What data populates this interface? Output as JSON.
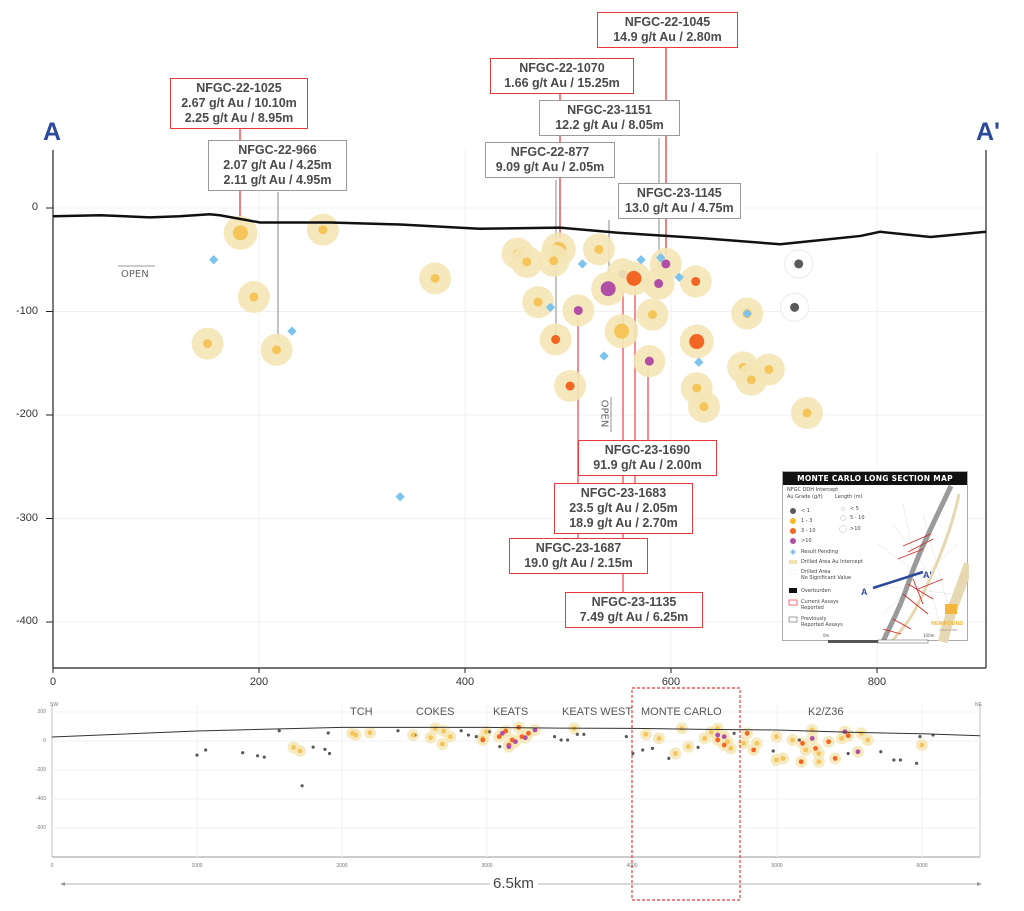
{
  "section_labels": {
    "start": "A",
    "end": "A'"
  },
  "colors": {
    "grade_lt1": "#5a5a5a",
    "grade_1_3": "#f5c55a",
    "grade_3_10": "#f26522",
    "grade_gt10": "#b04fa5",
    "halo": "#f5e6b6",
    "pending": "#7cc3ee",
    "callout_current": "#e8393f",
    "callout_previous": "#9a9a9a",
    "section_line": "#2c4a9c"
  },
  "main": {
    "x_ticks": [
      "0",
      "200",
      "400",
      "600",
      "800"
    ],
    "y_ticks": [
      "0",
      "-100",
      "-200",
      "-300",
      "-400"
    ],
    "x_tick_values": [
      0,
      200,
      400,
      600,
      800
    ],
    "y_tick_values": [
      0,
      -100,
      -200,
      -300,
      -400
    ],
    "open_labels": [
      "OPEN",
      "OPEN"
    ],
    "surface": [
      [
        0,
        -8
      ],
      [
        46,
        -7
      ],
      [
        94,
        -9
      ],
      [
        123,
        -8
      ],
      [
        152,
        -6
      ],
      [
        162,
        -7
      ],
      [
        201,
        -14
      ],
      [
        269,
        -14
      ],
      [
        337,
        -16
      ],
      [
        414,
        -20
      ],
      [
        492,
        -19
      ],
      [
        550,
        -24
      ],
      [
        628,
        -29
      ],
      [
        706,
        -35
      ],
      [
        745,
        -31
      ],
      [
        784,
        -27
      ],
      [
        803,
        -23
      ],
      [
        852,
        -28
      ],
      [
        906,
        -23
      ]
    ],
    "intercepts": [
      {
        "x": 182,
        "y": -24,
        "grade": "1-3",
        "length": ">10"
      },
      {
        "x": 262,
        "y": -21,
        "grade": "1-3",
        "length": "5-10"
      },
      {
        "x": 195,
        "y": -86,
        "grade": "1-3",
        "length": "5-10"
      },
      {
        "x": 150,
        "y": -131,
        "grade": "1-3",
        "length": "5-10"
      },
      {
        "x": 217,
        "y": -137,
        "grade": "1-3",
        "length": "5-10"
      },
      {
        "x": 371,
        "y": -68,
        "grade": "1-3",
        "length": "5-10"
      },
      {
        "x": 451,
        "y": -44,
        "grade": "1-3",
        "length": "5-10"
      },
      {
        "x": 460,
        "y": -52,
        "grade": "1-3",
        "length": "5-10"
      },
      {
        "x": 491,
        "y": -40,
        "grade": "1-3",
        "length": ">10"
      },
      {
        "x": 486,
        "y": -51,
        "grade": "1-3",
        "length": "5-10"
      },
      {
        "x": 530,
        "y": -40,
        "grade": "1-3",
        "length": "5-10"
      },
      {
        "x": 595,
        "y": -54,
        "grade": ">10",
        "length": "5-10"
      },
      {
        "x": 553,
        "y": -64,
        "grade": ">10",
        "length": "5-10"
      },
      {
        "x": 564,
        "y": -68,
        "grade": "3-10",
        "length": ">10"
      },
      {
        "x": 539,
        "y": -78,
        "grade": ">10",
        "length": ">10"
      },
      {
        "x": 588,
        "y": -73,
        "grade": ">10",
        "length": "5-10"
      },
      {
        "x": 624,
        "y": -71,
        "grade": "3-10",
        "length": "5-10"
      },
      {
        "x": 471,
        "y": -91,
        "grade": "1-3",
        "length": "5-10"
      },
      {
        "x": 510,
        "y": -99,
        "grade": ">10",
        "length": "5-10"
      },
      {
        "x": 582,
        "y": -103,
        "grade": "1-3",
        "length": "5-10"
      },
      {
        "x": 488,
        "y": -127,
        "grade": "3-10",
        "length": "5-10"
      },
      {
        "x": 552,
        "y": -119,
        "grade": "1-3",
        "length": ">10"
      },
      {
        "x": 579,
        "y": -148,
        "grade": ">10",
        "length": "5-10"
      },
      {
        "x": 625,
        "y": -129,
        "grade": "3-10",
        "length": ">10"
      },
      {
        "x": 502,
        "y": -172,
        "grade": "3-10",
        "length": "5-10"
      },
      {
        "x": 625,
        "y": -174,
        "grade": "1-3",
        "length": "5-10"
      },
      {
        "x": 632,
        "y": -192,
        "grade": "1-3",
        "length": "5-10"
      },
      {
        "x": 670,
        "y": -154,
        "grade": "1-3",
        "length": "5-10"
      },
      {
        "x": 678,
        "y": -166,
        "grade": "1-3",
        "length": "5-10"
      },
      {
        "x": 695,
        "y": -156,
        "grade": "1-3",
        "length": "5-10"
      },
      {
        "x": 732,
        "y": -198,
        "grade": "1-3",
        "length": "5-10"
      },
      {
        "x": 674,
        "y": -102,
        "grade": "1-3",
        "length": "5-10"
      },
      {
        "x": 724,
        "y": -54,
        "grade": "<1",
        "length": "5-10"
      },
      {
        "x": 720,
        "y": -96,
        "grade": "<1",
        "length": "5-10"
      }
    ],
    "pending": [
      [
        156,
        -50
      ],
      [
        232,
        -119
      ],
      [
        337,
        -279
      ],
      [
        514,
        -54
      ],
      [
        571,
        -50
      ],
      [
        590,
        -48
      ],
      [
        608,
        -67
      ],
      [
        483,
        -96
      ],
      [
        535,
        -143
      ],
      [
        627,
        -149
      ],
      [
        674,
        -102
      ]
    ],
    "callouts": [
      {
        "hole": "NFGC-22-1025",
        "lines": [
          "2.67 g/t Au / 10.10m",
          "2.25 g/t Au / 8.95m"
        ],
        "status": "current"
      },
      {
        "hole": "NFGC-22-966",
        "lines": [
          "2.07 g/t Au / 4.25m",
          "2.11 g/t Au / 4.95m"
        ],
        "status": "previous"
      },
      {
        "hole": "NFGC-22-1045",
        "lines": [
          "14.9 g/t Au / 2.80m"
        ],
        "status": "current"
      },
      {
        "hole": "NFGC-22-1070",
        "lines": [
          "1.66 g/t Au / 15.25m"
        ],
        "status": "current"
      },
      {
        "hole": "NFGC-23-1151",
        "lines": [
          "12.2 g/t Au / 8.05m"
        ],
        "status": "previous"
      },
      {
        "hole": "NFGC-22-877",
        "lines": [
          "9.09 g/t Au / 2.05m"
        ],
        "status": "previous"
      },
      {
        "hole": "NFGC-23-1145",
        "lines": [
          "13.0 g/t Au / 4.75m"
        ],
        "status": "previous"
      },
      {
        "hole": "NFGC-23-1690",
        "lines": [
          "91.9 g/t Au / 2.00m"
        ],
        "status": "current"
      },
      {
        "hole": "NFGC-23-1683",
        "lines": [
          "23.5 g/t Au / 2.05m",
          "18.9 g/t Au / 2.70m"
        ],
        "status": "current"
      },
      {
        "hole": "NFGC-23-1687",
        "lines": [
          "19.0 g/t Au / 2.15m"
        ],
        "status": "current"
      },
      {
        "hole": "NFGC-23-1135",
        "lines": [
          "7.49 g/t Au / 6.25m"
        ],
        "status": "current"
      }
    ]
  },
  "legend": {
    "title": "MONTE CARLO LONG SECTION MAP",
    "subtitle": "NFGC DDH Intercept",
    "grade_header": "Au Grade (g/t)",
    "length_header": "Length (m)",
    "grades": [
      "< 1",
      "1 - 3",
      "3 - 10",
      ">10"
    ],
    "lengths": [
      "< 5",
      "5 - 10",
      ">10"
    ],
    "items": [
      "Result Pending",
      "Drilled Area Au Intercept",
      "Drilled Area",
      "No Significant Value",
      "Overburden",
      "Current Assays",
      "Reported",
      "Previously",
      "Reported Assays"
    ],
    "map_labels": {
      "a": "A",
      "a_prime": "A'"
    },
    "scale": {
      "start": "0m",
      "end": "100m"
    },
    "logo": "NEWFOUND",
    "logo_sub": "GOLD CORP"
  },
  "inset": {
    "direction_left": "SW",
    "direction_right": "NE",
    "x_ticks": [
      "0",
      "1000",
      "2000",
      "3000",
      "4000",
      "5000",
      "6000"
    ],
    "x_tick_values": [
      0,
      1000,
      2000,
      3000,
      4000,
      5000,
      6000
    ],
    "y_ticks": [
      "200",
      "0",
      "-200",
      "-400",
      "-600"
    ],
    "y_tick_values": [
      200,
      0,
      -200,
      -400,
      -600
    ],
    "zones": [
      "TCH",
      "COKES",
      "KEATS",
      "KEATS WEST",
      "MONTE CARLO",
      "K2/Z36"
    ],
    "highlighted_zone": "MONTE CARLO",
    "length_label": "6.5km",
    "surface": [
      [
        0,
        28
      ],
      [
        1000,
        69
      ],
      [
        1500,
        82
      ],
      [
        2000,
        94
      ],
      [
        3000,
        94
      ],
      [
        3500,
        89
      ],
      [
        4000,
        87
      ],
      [
        4500,
        80
      ],
      [
        5000,
        76
      ],
      [
        5500,
        60
      ],
      [
        6000,
        50
      ],
      [
        6400,
        36
      ]
    ],
    "points": {
      "<1": [
        [
          1000,
          -97
        ],
        [
          1060,
          -62
        ],
        [
          1315,
          -81
        ],
        [
          1418,
          -102
        ],
        [
          1464,
          -111
        ],
        [
          1801,
          -42
        ],
        [
          1882,
          -58
        ],
        [
          1914,
          -86
        ],
        [
          1725,
          -309
        ],
        [
          1567,
          71
        ],
        [
          1905,
          55
        ],
        [
          2386,
          71
        ],
        [
          2503,
          41
        ],
        [
          2822,
          71
        ],
        [
          2872,
          41
        ],
        [
          2926,
          30
        ],
        [
          3016,
          64
        ],
        [
          3088,
          -39
        ],
        [
          3466,
          30
        ],
        [
          3511,
          7
        ],
        [
          3556,
          7
        ],
        [
          3623,
          46
        ],
        [
          3668,
          46
        ],
        [
          3961,
          30
        ],
        [
          4006,
          -86
        ],
        [
          4074,
          -62
        ],
        [
          4141,
          -51
        ],
        [
          4254,
          -120
        ],
        [
          4456,
          -44
        ],
        [
          4704,
          53
        ],
        [
          4974,
          -69
        ],
        [
          5154,
          7
        ],
        [
          5491,
          -86
        ],
        [
          5716,
          -74
        ],
        [
          5806,
          -131
        ],
        [
          5851,
          -131
        ],
        [
          5963,
          -154
        ],
        [
          5986,
          30
        ],
        [
          6076,
          41
        ]
      ],
      "1-3": [
        [
          1666,
          -44
        ],
        [
          1711,
          -69
        ],
        [
          2071,
          53
        ],
        [
          2193,
          57
        ],
        [
          2094,
          41
        ],
        [
          2490,
          41
        ],
        [
          2611,
          23
        ],
        [
          2643,
          87
        ],
        [
          2701,
          69
        ],
        [
          2746,
          30
        ],
        [
          2692,
          -21
        ],
        [
          2971,
          18
        ],
        [
          2994,
          64
        ],
        [
          3601,
          87
        ],
        [
          4096,
          46
        ],
        [
          4186,
          18
        ],
        [
          4344,
          87
        ],
        [
          4299,
          -86
        ],
        [
          4389,
          -39
        ],
        [
          4501,
          18
        ],
        [
          4546,
          60
        ],
        [
          4591,
          87
        ],
        [
          4681,
          -51
        ],
        [
          4771,
          -16
        ],
        [
          4861,
          -16
        ],
        [
          4996,
          30
        ],
        [
          4996,
          -131
        ],
        [
          5041,
          -120
        ],
        [
          5108,
          7
        ],
        [
          5198,
          -62
        ],
        [
          5243,
          76
        ],
        [
          5288,
          -86
        ],
        [
          5288,
          -143
        ],
        [
          5446,
          18
        ],
        [
          5491,
          41
        ],
        [
          5581,
          53
        ],
        [
          5626,
          7
        ],
        [
          5999,
          -28
        ],
        [
          4659,
          -5
        ]
      ],
      "3-10": [
        [
          2971,
          7
        ],
        [
          3084,
          30
        ],
        [
          3129,
          69
        ],
        [
          3174,
          7
        ],
        [
          3219,
          94
        ],
        [
          3241,
          30
        ],
        [
          3286,
          53
        ],
        [
          3151,
          -28
        ],
        [
          4591,
          7
        ],
        [
          4636,
          -28
        ],
        [
          5176,
          -16
        ],
        [
          5266,
          -51
        ],
        [
          5356,
          -5
        ],
        [
          5401,
          -120
        ],
        [
          5167,
          -143
        ],
        [
          5491,
          37
        ],
        [
          4794,
          53
        ],
        [
          4839,
          -62
        ]
      ],
      ">10": [
        [
          3106,
          53
        ],
        [
          3151,
          -39
        ],
        [
          3196,
          -5
        ],
        [
          3264,
          23
        ],
        [
          3331,
          76
        ],
        [
          4591,
          41
        ],
        [
          4636,
          30
        ],
        [
          5243,
          18
        ],
        [
          5468,
          64
        ],
        [
          5558,
          -74
        ]
      ]
    }
  }
}
